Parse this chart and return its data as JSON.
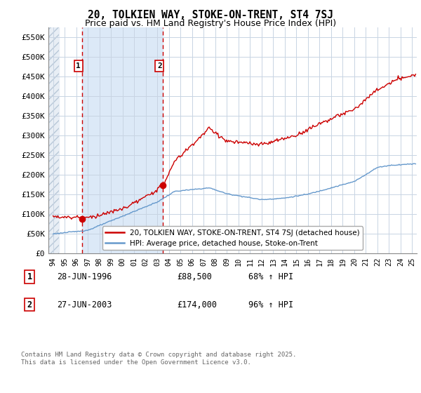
{
  "title": "20, TOLKIEN WAY, STOKE-ON-TRENT, ST4 7SJ",
  "subtitle": "Price paid vs. HM Land Registry's House Price Index (HPI)",
  "ylim": [
    0,
    575000
  ],
  "yticks": [
    0,
    50000,
    100000,
    150000,
    200000,
    250000,
    300000,
    350000,
    400000,
    450000,
    500000,
    550000
  ],
  "ytick_labels": [
    "£0",
    "£50K",
    "£100K",
    "£150K",
    "£200K",
    "£250K",
    "£300K",
    "£350K",
    "£400K",
    "£450K",
    "£500K",
    "£550K"
  ],
  "purchase1_date": 1996.49,
  "purchase1_price": 88500,
  "purchase1_label": "1",
  "purchase2_date": 2003.49,
  "purchase2_price": 174000,
  "purchase2_label": "2",
  "property_line_color": "#cc0000",
  "hpi_line_color": "#6699cc",
  "vline_color": "#cc0000",
  "grid_color": "#c8d4e3",
  "highlight_color": "#dce9f7",
  "background_color": "#ffffff",
  "legend_entry1": "20, TOLKIEN WAY, STOKE-ON-TRENT, ST4 7SJ (detached house)",
  "legend_entry2": "HPI: Average price, detached house, Stoke-on-Trent",
  "footer": "Contains HM Land Registry data © Crown copyright and database right 2025.\nThis data is licensed under the Open Government Licence v3.0.",
  "table_row1": [
    "1",
    "28-JUN-1996",
    "£88,500",
    "68% ↑ HPI"
  ],
  "table_row2": [
    "2",
    "27-JUN-2003",
    "£174,000",
    "96% ↑ HPI"
  ],
  "xlim_left": 1993.6,
  "xlim_right": 2025.4,
  "hatch_end": 1994.5
}
